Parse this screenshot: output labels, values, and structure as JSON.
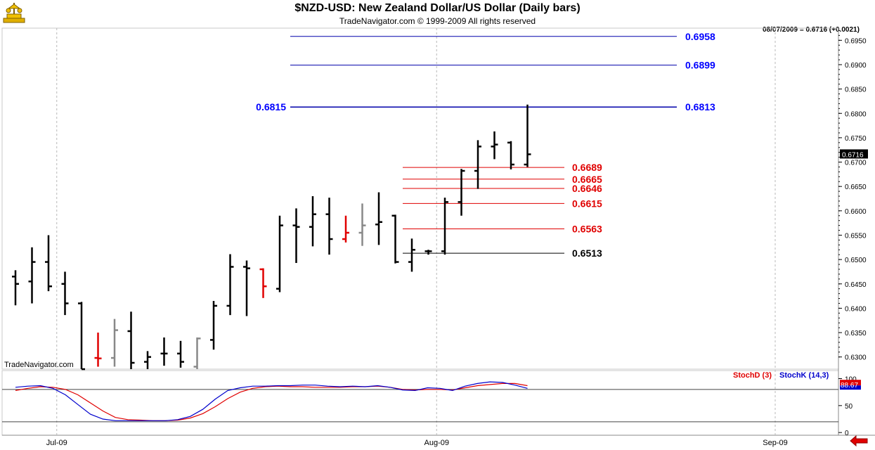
{
  "header": {
    "title": "$NZD-USD:  New Zealand Dollar/US Dollar  (Daily bars)",
    "subtitle": "TradeNavigator.com © 1999-2009 All rights reserved",
    "quote": "08/07/2009 = 0.6716 (+0.0021)",
    "watermark": "TradeNavigator.com"
  },
  "colors": {
    "up_bar": "#000000",
    "highlight_bar_red": "#e00000",
    "highlight_bar_gray": "#888888",
    "projection_line_blue": "#0000aa",
    "support_line_red": "#e00000",
    "last_price_box": "#000000",
    "stoch_d": "#e00000",
    "stoch_k": "#0000cc"
  },
  "chart_data": [
    {
      "type": "ohlc",
      "title": "$NZD-USD:  New Zealand Dollar/US Dollar  (Daily bars)",
      "ylim": [
        0.6275,
        0.6975
      ],
      "yticks": [
        "0.6300",
        "0.6350",
        "0.6400",
        "0.6450",
        "0.6500",
        "0.6550",
        "0.6600",
        "0.6650",
        "0.6700",
        "0.6750",
        "0.6800",
        "0.6850",
        "0.6900",
        "0.6950"
      ],
      "xticks": [
        {
          "label": "Jul-09",
          "index": 2.5
        },
        {
          "label": "Aug-09",
          "index": 25.5
        },
        {
          "label": "Sep-09",
          "index": 46
        }
      ],
      "last_price": "0.6716",
      "bars": [
        {
          "o": 0.6465,
          "h": 0.6478,
          "l": 0.6406,
          "c": 0.645,
          "color": "black"
        },
        {
          "o": 0.6455,
          "h": 0.6525,
          "l": 0.641,
          "c": 0.6495,
          "color": "black"
        },
        {
          "o": 0.6495,
          "h": 0.655,
          "l": 0.6435,
          "c": 0.6445,
          "color": "black"
        },
        {
          "o": 0.645,
          "h": 0.6475,
          "l": 0.6386,
          "c": 0.641,
          "color": "black"
        },
        {
          "o": 0.641,
          "h": 0.6413,
          "l": 0.6275,
          "c": 0.6275,
          "color": "black"
        },
        {
          "o": 0.6298,
          "h": 0.635,
          "l": 0.628,
          "c": 0.6297,
          "color": "red"
        },
        {
          "o": 0.6298,
          "h": 0.6378,
          "l": 0.628,
          "c": 0.6355,
          "color": "gray"
        },
        {
          "o": 0.6353,
          "h": 0.6393,
          "l": 0.6275,
          "c": 0.6288,
          "color": "black"
        },
        {
          "o": 0.629,
          "h": 0.6312,
          "l": 0.6275,
          "c": 0.63,
          "color": "black"
        },
        {
          "o": 0.6307,
          "h": 0.634,
          "l": 0.6282,
          "c": 0.6307,
          "color": "black"
        },
        {
          "o": 0.6307,
          "h": 0.6333,
          "l": 0.6278,
          "c": 0.629,
          "color": "black"
        },
        {
          "o": 0.628,
          "h": 0.634,
          "l": 0.6275,
          "c": 0.6338,
          "color": "gray"
        },
        {
          "o": 0.6335,
          "h": 0.6415,
          "l": 0.6315,
          "c": 0.6405,
          "color": "black"
        },
        {
          "o": 0.6405,
          "h": 0.6511,
          "l": 0.6386,
          "c": 0.6485,
          "color": "black"
        },
        {
          "o": 0.6485,
          "h": 0.6498,
          "l": 0.6384,
          "c": 0.6482,
          "color": "black"
        },
        {
          "o": 0.648,
          "h": 0.6482,
          "l": 0.6421,
          "c": 0.6445,
          "color": "red"
        },
        {
          "o": 0.644,
          "h": 0.659,
          "l": 0.6433,
          "c": 0.657,
          "color": "black"
        },
        {
          "o": 0.657,
          "h": 0.6605,
          "l": 0.6493,
          "c": 0.6567,
          "color": "black"
        },
        {
          "o": 0.6567,
          "h": 0.663,
          "l": 0.6527,
          "c": 0.6593,
          "color": "black"
        },
        {
          "o": 0.6593,
          "h": 0.6627,
          "l": 0.651,
          "c": 0.6542,
          "color": "black"
        },
        {
          "o": 0.6542,
          "h": 0.659,
          "l": 0.6535,
          "c": 0.6555,
          "color": "red"
        },
        {
          "o": 0.6555,
          "h": 0.6615,
          "l": 0.6528,
          "c": 0.657,
          "color": "gray"
        },
        {
          "o": 0.6572,
          "h": 0.6638,
          "l": 0.653,
          "c": 0.6577,
          "color": "black"
        },
        {
          "o": 0.659,
          "h": 0.6592,
          "l": 0.6492,
          "c": 0.6495,
          "color": "black"
        },
        {
          "o": 0.6495,
          "h": 0.6543,
          "l": 0.6475,
          "c": 0.652,
          "color": "black"
        },
        {
          "o": 0.6517,
          "h": 0.652,
          "l": 0.651,
          "c": 0.6517,
          "color": "black"
        },
        {
          "o": 0.6517,
          "h": 0.6627,
          "l": 0.651,
          "c": 0.6618,
          "color": "black"
        },
        {
          "o": 0.6618,
          "h": 0.6686,
          "l": 0.659,
          "c": 0.6682,
          "color": "black"
        },
        {
          "o": 0.6682,
          "h": 0.6745,
          "l": 0.6645,
          "c": 0.6732,
          "color": "black"
        },
        {
          "o": 0.6732,
          "h": 0.6763,
          "l": 0.6706,
          "c": 0.6736,
          "color": "black"
        },
        {
          "o": 0.674,
          "h": 0.6743,
          "l": 0.6685,
          "c": 0.6695,
          "color": "black"
        },
        {
          "o": 0.6695,
          "h": 0.6818,
          "l": 0.669,
          "c": 0.6716,
          "color": "black"
        }
      ],
      "annotations": {
        "blue_lines": [
          {
            "value": 0.6958,
            "label": "0.6958"
          },
          {
            "value": 0.6899,
            "label": "0.6899"
          },
          {
            "value": 0.6813,
            "label": "0.6813",
            "left_label": "0.6815"
          }
        ],
        "support_lines": [
          {
            "value": 0.6689,
            "label": "0.6689",
            "color": "red"
          },
          {
            "value": 0.6665,
            "label": "0.6665",
            "color": "red"
          },
          {
            "value": 0.6646,
            "label": "0.6646",
            "color": "red"
          },
          {
            "value": 0.6615,
            "label": "0.6615",
            "color": "red"
          },
          {
            "value": 0.6563,
            "label": "0.6563",
            "color": "red"
          },
          {
            "value": 0.6513,
            "label": "0.6513",
            "color": "black"
          }
        ]
      }
    },
    {
      "type": "line",
      "title": "",
      "ylim": [
        -5,
        115
      ],
      "yticks": [
        "0",
        "50",
        "100"
      ],
      "reference_lines": [
        80,
        20
      ],
      "legend": "top-right",
      "last_value": "88.67",
      "series": [
        {
          "name": "StochD (3)",
          "color": "#e00000",
          "values": [
            78,
            82,
            85,
            84,
            80,
            70,
            55,
            40,
            28,
            24,
            23,
            22,
            22,
            23,
            27,
            35,
            48,
            63,
            75,
            82,
            85,
            86,
            85,
            85,
            84,
            84,
            84,
            85,
            85,
            86,
            84,
            80,
            79,
            80,
            80,
            79,
            83,
            87,
            89,
            91,
            91,
            87
          ]
        },
        {
          "name": "StochK (14,3)",
          "color": "#0000cc",
          "values": [
            84,
            86,
            87,
            82,
            70,
            52,
            34,
            25,
            22,
            22,
            22,
            22,
            22,
            24,
            30,
            43,
            62,
            78,
            83,
            86,
            86,
            87,
            87,
            88,
            88,
            86,
            85,
            86,
            85,
            87,
            84,
            79,
            78,
            83,
            82,
            78,
            86,
            91,
            94,
            93,
            88,
            82
          ]
        }
      ]
    }
  ]
}
